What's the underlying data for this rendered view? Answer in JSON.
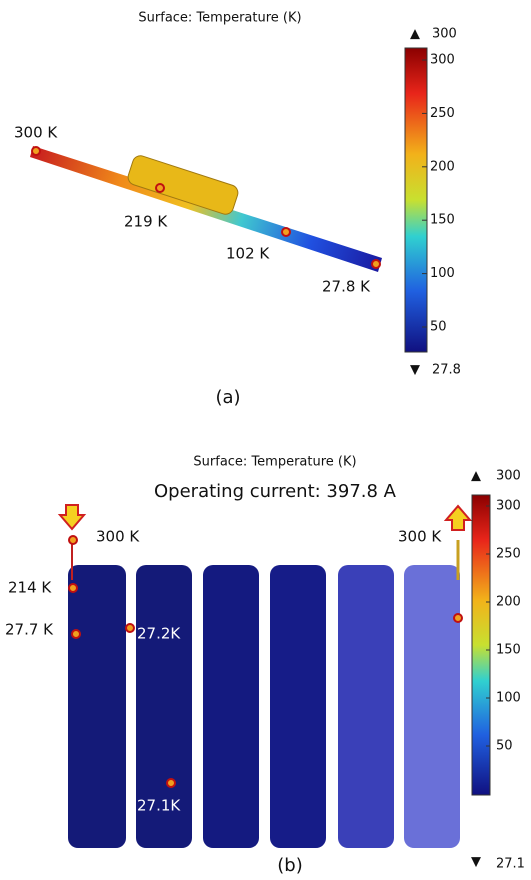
{
  "panels": [
    {
      "title": "Surface: Temperature (K)",
      "label": "(a)",
      "colorbar": {
        "max_label": "300",
        "min_label": "27.8",
        "ticks": [
          300,
          250,
          200,
          150,
          100,
          50
        ]
      },
      "points": [
        "300 K",
        "219 K",
        "102 K",
        "27.8 K"
      ]
    },
    {
      "title": "Surface: Temperature (K)",
      "subtitle": "Operating current: 397.8 A",
      "label": "(b)",
      "colorbar": {
        "max_label": "300",
        "min_label": "27.1",
        "ticks": [
          300,
          250,
          200,
          150,
          100,
          50
        ]
      },
      "points": [
        "300 K",
        "300 K",
        "214 K",
        "27.7 K",
        "27.2K",
        "27.1K"
      ]
    }
  ]
}
